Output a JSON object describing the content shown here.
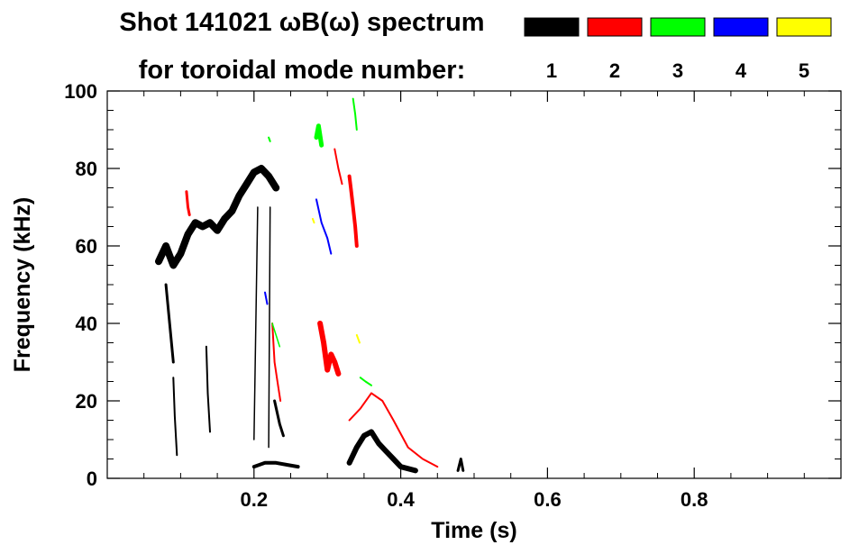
{
  "chart_data": {
    "type": "heatmap",
    "title_line1": "Shot 141021 ωB(ω) spectrum",
    "title_line2": "for toroidal mode number:",
    "xlabel": "Time (s)",
    "ylabel": "Frequency (kHz)",
    "xlim": [
      0.0,
      1.0
    ],
    "ylim": [
      0,
      100
    ],
    "x_ticks": [
      {
        "value": 0.2,
        "label": "0.2"
      },
      {
        "value": 0.4,
        "label": "0.4"
      },
      {
        "value": 0.6,
        "label": "0.6"
      },
      {
        "value": 0.8,
        "label": "0.8"
      }
    ],
    "y_ticks": [
      {
        "value": 0,
        "label": "0"
      },
      {
        "value": 20,
        "label": "20"
      },
      {
        "value": 40,
        "label": "40"
      },
      {
        "value": 60,
        "label": "60"
      },
      {
        "value": 80,
        "label": "80"
      },
      {
        "value": 100,
        "label": "100"
      }
    ],
    "legend": [
      {
        "mode": "1",
        "color": "#000000"
      },
      {
        "mode": "2",
        "color": "#ff0000"
      },
      {
        "mode": "3",
        "color": "#00ff00"
      },
      {
        "mode": "4",
        "color": "#0000ff"
      },
      {
        "mode": "5",
        "color": "#ffff00"
      }
    ],
    "series": [
      {
        "name": "n=1",
        "mode": "1",
        "color": "#000000",
        "segments": [
          {
            "points": [
              [
                0.07,
                56
              ],
              [
                0.08,
                60
              ],
              [
                0.09,
                55
              ],
              [
                0.1,
                58
              ],
              [
                0.11,
                63
              ],
              [
                0.12,
                66
              ],
              [
                0.13,
                65
              ],
              [
                0.14,
                66
              ],
              [
                0.15,
                64
              ],
              [
                0.16,
                67
              ],
              [
                0.17,
                69
              ],
              [
                0.18,
                73
              ],
              [
                0.19,
                76
              ],
              [
                0.2,
                79
              ],
              [
                0.21,
                80
              ],
              [
                0.22,
                78
              ],
              [
                0.23,
                75
              ]
            ],
            "width": 8
          },
          {
            "points": [
              [
                0.08,
                50
              ],
              [
                0.085,
                40
              ],
              [
                0.09,
                30
              ]
            ],
            "width": 3
          },
          {
            "points": [
              [
                0.09,
                26
              ],
              [
                0.092,
                16
              ],
              [
                0.095,
                6
              ]
            ],
            "width": 2
          },
          {
            "points": [
              [
                0.135,
                34
              ],
              [
                0.137,
                22
              ],
              [
                0.14,
                12
              ]
            ],
            "width": 2
          },
          {
            "points": [
              [
                0.2,
                10
              ],
              [
                0.205,
                70
              ]
            ],
            "width": 1.5
          },
          {
            "points": [
              [
                0.22,
                8
              ],
              [
                0.222,
                70
              ]
            ],
            "width": 1.5
          },
          {
            "points": [
              [
                0.228,
                20
              ],
              [
                0.235,
                14
              ],
              [
                0.24,
                11
              ]
            ],
            "width": 3
          },
          {
            "points": [
              [
                0.2,
                3
              ],
              [
                0.215,
                4
              ],
              [
                0.23,
                4
              ],
              [
                0.245,
                3.5
              ],
              [
                0.26,
                3
              ]
            ],
            "width": 4
          },
          {
            "points": [
              [
                0.33,
                4
              ],
              [
                0.34,
                8
              ],
              [
                0.35,
                11
              ],
              [
                0.36,
                12
              ],
              [
                0.37,
                9
              ],
              [
                0.38,
                7
              ],
              [
                0.39,
                5
              ],
              [
                0.4,
                3
              ],
              [
                0.42,
                2
              ]
            ],
            "width": 6
          },
          {
            "points": [
              [
                0.478,
                2
              ],
              [
                0.482,
                5
              ],
              [
                0.485,
                2
              ]
            ],
            "width": 3
          }
        ]
      },
      {
        "name": "n=2",
        "mode": "2",
        "color": "#ff0000",
        "segments": [
          {
            "points": [
              [
                0.108,
                74
              ],
              [
                0.11,
                70
              ],
              [
                0.112,
                68
              ]
            ],
            "width": 3
          },
          {
            "points": [
              [
                0.225,
                40
              ],
              [
                0.228,
                30
              ],
              [
                0.232,
                25
              ],
              [
                0.236,
                20
              ]
            ],
            "width": 2
          },
          {
            "points": [
              [
                0.29,
                40
              ],
              [
                0.295,
                35
              ],
              [
                0.3,
                28
              ],
              [
                0.305,
                32
              ],
              [
                0.31,
                30
              ],
              [
                0.315,
                27
              ]
            ],
            "width": 6
          },
          {
            "points": [
              [
                0.33,
                15
              ],
              [
                0.345,
                18
              ],
              [
                0.36,
                22
              ],
              [
                0.375,
                20
              ],
              [
                0.39,
                15
              ],
              [
                0.41,
                8
              ],
              [
                0.43,
                5
              ],
              [
                0.45,
                3
              ]
            ],
            "width": 2
          },
          {
            "points": [
              [
                0.33,
                78
              ],
              [
                0.332,
                75
              ],
              [
                0.335,
                70
              ],
              [
                0.338,
                65
              ],
              [
                0.34,
                60
              ]
            ],
            "width": 4
          },
          {
            "points": [
              [
                0.31,
                85
              ],
              [
                0.315,
                80
              ],
              [
                0.32,
                76
              ]
            ],
            "width": 2
          }
        ]
      },
      {
        "name": "n=3",
        "mode": "3",
        "color": "#00ff00",
        "segments": [
          {
            "points": [
              [
                0.285,
                88
              ],
              [
                0.288,
                91
              ],
              [
                0.292,
                86
              ]
            ],
            "width": 5
          },
          {
            "points": [
              [
                0.335,
                98
              ],
              [
                0.338,
                94
              ],
              [
                0.34,
                90
              ]
            ],
            "width": 2
          },
          {
            "points": [
              [
                0.345,
                26
              ],
              [
                0.352,
                25
              ],
              [
                0.36,
                24
              ]
            ],
            "width": 2
          },
          {
            "points": [
              [
                0.22,
                88
              ],
              [
                0.222,
                87
              ]
            ],
            "width": 2
          },
          {
            "points": [
              [
                0.225,
                40
              ],
              [
                0.23,
                37
              ],
              [
                0.235,
                34
              ]
            ],
            "width": 1.5
          }
        ]
      },
      {
        "name": "n=4",
        "mode": "4",
        "color": "#0000ff",
        "segments": [
          {
            "points": [
              [
                0.285,
                72
              ],
              [
                0.292,
                66
              ],
              [
                0.3,
                62
              ],
              [
                0.305,
                58
              ]
            ],
            "width": 2
          },
          {
            "points": [
              [
                0.215,
                48
              ],
              [
                0.218,
                45
              ]
            ],
            "width": 2
          }
        ]
      },
      {
        "name": "n=5",
        "mode": "5",
        "color": "#ffff00",
        "segments": [
          {
            "points": [
              [
                0.34,
                37
              ],
              [
                0.342,
                36
              ],
              [
                0.344,
                35
              ]
            ],
            "width": 2
          },
          {
            "points": [
              [
                0.28,
                67
              ],
              [
                0.282,
                66
              ]
            ],
            "width": 2
          }
        ]
      }
    ]
  }
}
